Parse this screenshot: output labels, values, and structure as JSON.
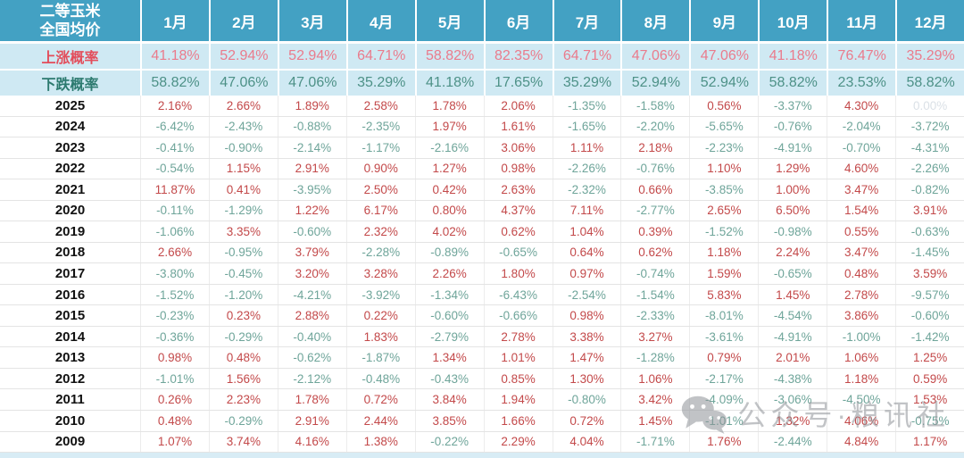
{
  "chart_data": {
    "type": "table",
    "title": "二等玉米 全国均价",
    "corner_header": [
      "二等玉米",
      "全国均价"
    ],
    "columns": [
      "1月",
      "2月",
      "3月",
      "4月",
      "5月",
      "6月",
      "7月",
      "8月",
      "9月",
      "10月",
      "11月",
      "12月"
    ],
    "probability_rows": [
      {
        "label": "上涨概率",
        "values": [
          "41.18%",
          "52.94%",
          "52.94%",
          "64.71%",
          "58.82%",
          "82.35%",
          "64.71%",
          "47.06%",
          "47.06%",
          "41.18%",
          "76.47%",
          "35.29%"
        ]
      },
      {
        "label": "下跌概率",
        "values": [
          "58.82%",
          "47.06%",
          "47.06%",
          "35.29%",
          "41.18%",
          "17.65%",
          "35.29%",
          "52.94%",
          "52.94%",
          "58.82%",
          "23.53%",
          "58.82%"
        ]
      }
    ],
    "year_rows": [
      {
        "year": "2025",
        "values": [
          "2.16%",
          "2.66%",
          "1.89%",
          "2.58%",
          "1.78%",
          "2.06%",
          "-1.35%",
          "-1.58%",
          "0.56%",
          "-3.37%",
          "4.30%",
          "0.00%"
        ]
      },
      {
        "year": "2024",
        "values": [
          "-6.42%",
          "-2.43%",
          "-0.88%",
          "-2.35%",
          "1.97%",
          "1.61%",
          "-1.65%",
          "-2.20%",
          "-5.65%",
          "-0.76%",
          "-2.04%",
          "-3.72%"
        ]
      },
      {
        "year": "2023",
        "values": [
          "-0.41%",
          "-0.90%",
          "-2.14%",
          "-1.17%",
          "-2.16%",
          "3.06%",
          "1.11%",
          "2.18%",
          "-2.23%",
          "-4.91%",
          "-0.70%",
          "-4.31%"
        ]
      },
      {
        "year": "2022",
        "values": [
          "-0.54%",
          "1.15%",
          "2.91%",
          "0.90%",
          "1.27%",
          "0.98%",
          "-2.26%",
          "-0.76%",
          "1.10%",
          "1.29%",
          "4.60%",
          "-2.26%"
        ]
      },
      {
        "year": "2021",
        "values": [
          "11.87%",
          "0.41%",
          "-3.95%",
          "2.50%",
          "0.42%",
          "2.63%",
          "-2.32%",
          "0.66%",
          "-3.85%",
          "1.00%",
          "3.47%",
          "-0.82%"
        ]
      },
      {
        "year": "2020",
        "values": [
          "-0.11%",
          "-1.29%",
          "1.22%",
          "6.17%",
          "0.80%",
          "4.37%",
          "7.11%",
          "-2.77%",
          "2.65%",
          "6.50%",
          "1.54%",
          "3.91%"
        ]
      },
      {
        "year": "2019",
        "values": [
          "-1.06%",
          "3.35%",
          "-0.60%",
          "2.32%",
          "4.02%",
          "0.62%",
          "1.04%",
          "0.39%",
          "-1.52%",
          "-0.98%",
          "0.55%",
          "-0.63%"
        ]
      },
      {
        "year": "2018",
        "values": [
          "2.66%",
          "-0.95%",
          "3.79%",
          "-2.28%",
          "-0.89%",
          "-0.65%",
          "0.64%",
          "0.62%",
          "1.18%",
          "2.24%",
          "3.47%",
          "-1.45%"
        ]
      },
      {
        "year": "2017",
        "values": [
          "-3.80%",
          "-0.45%",
          "3.20%",
          "3.28%",
          "2.26%",
          "1.80%",
          "0.97%",
          "-0.74%",
          "1.59%",
          "-0.65%",
          "0.48%",
          "3.59%"
        ]
      },
      {
        "year": "2016",
        "values": [
          "-1.52%",
          "-1.20%",
          "-4.21%",
          "-3.92%",
          "-1.34%",
          "-6.43%",
          "-2.54%",
          "-1.54%",
          "5.83%",
          "1.45%",
          "2.78%",
          "-9.57%"
        ]
      },
      {
        "year": "2015",
        "values": [
          "-0.23%",
          "0.23%",
          "2.88%",
          "0.22%",
          "-0.60%",
          "-0.66%",
          "0.98%",
          "-2.33%",
          "-8.01%",
          "-4.54%",
          "3.86%",
          "-0.60%"
        ]
      },
      {
        "year": "2014",
        "values": [
          "-0.36%",
          "-0.29%",
          "-0.40%",
          "1.83%",
          "-2.79%",
          "2.78%",
          "3.38%",
          "3.27%",
          "-3.61%",
          "-4.91%",
          "-1.00%",
          "-1.42%"
        ]
      },
      {
        "year": "2013",
        "values": [
          "0.98%",
          "0.48%",
          "-0.62%",
          "-1.87%",
          "1.34%",
          "1.01%",
          "1.47%",
          "-1.28%",
          "0.79%",
          "2.01%",
          "1.06%",
          "1.25%"
        ]
      },
      {
        "year": "2012",
        "values": [
          "-1.01%",
          "1.56%",
          "-2.12%",
          "-0.48%",
          "-0.43%",
          "0.85%",
          "1.30%",
          "1.06%",
          "-2.17%",
          "-4.38%",
          "1.18%",
          "0.59%"
        ]
      },
      {
        "year": "2011",
        "values": [
          "0.26%",
          "2.23%",
          "1.78%",
          "0.72%",
          "3.84%",
          "1.94%",
          "-0.80%",
          "3.42%",
          "-4.09%",
          "-3.06%",
          "-4.50%",
          "1.53%"
        ]
      },
      {
        "year": "2010",
        "values": [
          "0.48%",
          "-0.29%",
          "2.91%",
          "2.44%",
          "3.85%",
          "1.66%",
          "0.72%",
          "1.45%",
          "-1.01%",
          "1.32%",
          "4.06%",
          "-0.75%"
        ]
      },
      {
        "year": "2009",
        "values": [
          "1.07%",
          "3.74%",
          "4.16%",
          "1.38%",
          "-0.22%",
          "2.29%",
          "4.04%",
          "-1.71%",
          "1.76%",
          "-2.44%",
          "4.84%",
          "1.17%"
        ]
      }
    ],
    "layout": {
      "grid": true,
      "positive_value_color": "#c3494a",
      "negative_value_color": "#6fa59a",
      "zero_value_color": "#dbe1e7",
      "rise_label_color": "#e34d5b",
      "rise_value_color": "#ea7b8c",
      "fall_label_color": "#2c7a6f",
      "fall_value_color": "#4d9187",
      "header_background": "#43a1c3",
      "probability_row_background": "#cfe9f3"
    }
  },
  "watermark": {
    "icon": "wechat-icon",
    "text": "公众号·粮讯社"
  }
}
